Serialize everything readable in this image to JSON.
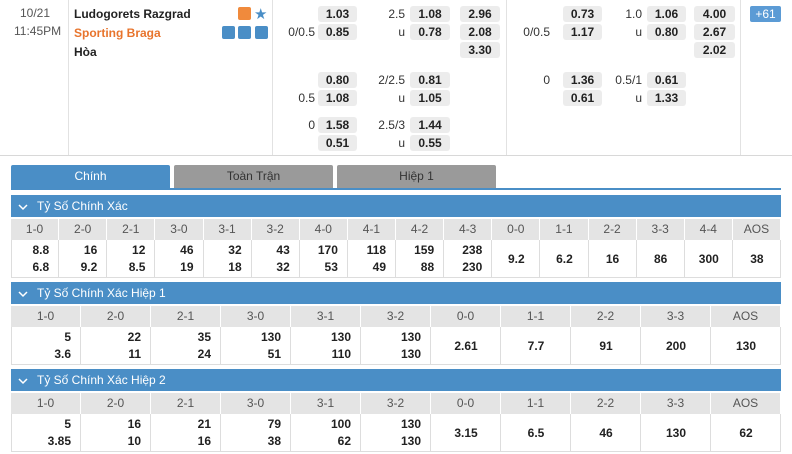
{
  "match": {
    "date": "10/21",
    "time": "11:45PM",
    "home": "Ludogorets Razgrad",
    "away": "Sporting Braga",
    "draw": "Hòa",
    "more": "+61"
  },
  "full_time": [
    {
      "ah": "1.03",
      "ou_line": "2.5",
      "ou": "1.08",
      "x12": "2.96"
    },
    {
      "hdp": "0/0.5",
      "ah": "0.85",
      "ou_line": "u",
      "ou": "0.78",
      "x12": "2.08"
    },
    {
      "x12": "3.30"
    },
    {
      "ah": "0.80",
      "ou_line": "2/2.5",
      "ou": "0.81"
    },
    {
      "hdp": "0.5",
      "ah": "1.08",
      "ou_line": "u",
      "ou": "1.05"
    },
    {
      "hdp": "0",
      "ah": "1.58",
      "ou_line": "2.5/3",
      "ou": "1.44"
    },
    {
      "ah": "0.51",
      "ou_line": "u",
      "ou": "0.55"
    }
  ],
  "first_half": [
    {
      "ah": "0.73",
      "ou_line": "1.0",
      "ou": "1.06",
      "x12": "4.00"
    },
    {
      "hdp": "0/0.5",
      "ah": "1.17",
      "ou_line": "u",
      "ou": "0.80",
      "x12": "2.67"
    },
    {
      "x12": "2.02"
    },
    {
      "hdp": "0",
      "ah": "1.36",
      "ou_line": "0.5/1",
      "ou": "0.61"
    },
    {
      "ah": "0.61",
      "ou_line": "u",
      "ou": "1.33"
    }
  ],
  "tabs": [
    "Chính",
    "Toàn Trận",
    "Hiệp 1"
  ],
  "sections": [
    {
      "title": "Tỷ Số Chính Xác",
      "columns": [
        "1-0",
        "2-0",
        "2-1",
        "3-0",
        "3-1",
        "3-2",
        "4-0",
        "4-1",
        "4-2",
        "4-3",
        "0-0",
        "1-1",
        "2-2",
        "3-3",
        "4-4",
        "AOS"
      ],
      "values": [
        [
          8.8,
          6.8
        ],
        [
          16,
          9.2
        ],
        [
          12,
          8.5
        ],
        [
          46,
          19
        ],
        [
          32,
          18
        ],
        [
          43,
          32
        ],
        [
          170,
          53
        ],
        [
          118,
          49
        ],
        [
          159,
          88
        ],
        [
          238,
          230
        ],
        [
          9.2
        ],
        [
          6.2
        ],
        [
          16
        ],
        [
          86
        ],
        [
          300
        ],
        [
          38
        ]
      ]
    },
    {
      "title": "Tỷ Số Chính Xác Hiệp 1",
      "columns": [
        "1-0",
        "2-0",
        "2-1",
        "3-0",
        "3-1",
        "3-2",
        "0-0",
        "1-1",
        "2-2",
        "3-3",
        "AOS"
      ],
      "values": [
        [
          5,
          3.6
        ],
        [
          22,
          11
        ],
        [
          35,
          24
        ],
        [
          130,
          51
        ],
        [
          130,
          110
        ],
        [
          130,
          130
        ],
        [
          2.61
        ],
        [
          7.7
        ],
        [
          91
        ],
        [
          200
        ],
        [
          130
        ]
      ]
    },
    {
      "title": "Tỷ Số Chính Xác Hiệp 2",
      "columns": [
        "1-0",
        "2-0",
        "2-1",
        "3-0",
        "3-1",
        "3-2",
        "0-0",
        "1-1",
        "2-2",
        "3-3",
        "AOS"
      ],
      "values": [
        [
          5,
          3.85
        ],
        [
          16,
          10
        ],
        [
          21,
          16
        ],
        [
          79,
          38
        ],
        [
          100,
          62
        ],
        [
          130,
          130
        ],
        [
          3.15
        ],
        [
          6.5
        ],
        [
          46
        ],
        [
          130
        ],
        [
          62
        ]
      ]
    }
  ]
}
